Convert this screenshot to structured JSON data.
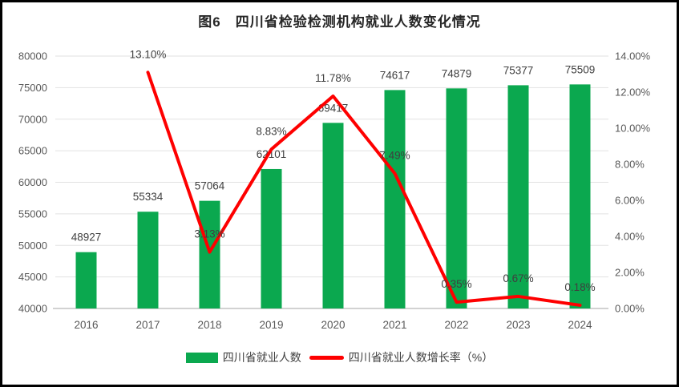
{
  "title": "图6　四川省检验检测机构就业人数变化情况",
  "chart_data": {
    "type": "bar",
    "subtype": "bar+line combo",
    "categories": [
      "2016",
      "2017",
      "2018",
      "2019",
      "2020",
      "2021",
      "2022",
      "2023",
      "2024"
    ],
    "series": [
      {
        "name": "四川省就业人数",
        "type": "bar",
        "axis": "left",
        "color": "#0ba84f",
        "values": [
          48927,
          55334,
          57064,
          62101,
          69417,
          74617,
          74879,
          75377,
          75509
        ],
        "labels": [
          "48927",
          "55334",
          "57064",
          "62101",
          "69417",
          "74617",
          "74879",
          "75377",
          "75509"
        ]
      },
      {
        "name": "四川省就业人数增长率（%）",
        "type": "line",
        "axis": "right",
        "color": "#fe0000",
        "values": [
          null,
          13.1,
          3.13,
          8.83,
          11.78,
          7.49,
          0.35,
          0.67,
          0.18
        ],
        "labels": [
          null,
          "13.10%",
          "3.13%",
          "8.83%",
          "11.78%",
          "7.49%",
          "0.35%",
          "0.67%",
          "0.18%"
        ]
      }
    ],
    "axes": {
      "left": {
        "min": 40000,
        "max": 80000,
        "step": 5000,
        "tick_labels": [
          "40000",
          "45000",
          "50000",
          "55000",
          "60000",
          "65000",
          "70000",
          "75000",
          "80000"
        ]
      },
      "right": {
        "min": 0,
        "max": 14,
        "step": 2,
        "tick_labels": [
          "0.00%",
          "2.00%",
          "4.00%",
          "6.00%",
          "8.00%",
          "10.00%",
          "12.00%",
          "14.00%"
        ]
      }
    },
    "grid": "horizontal",
    "legend_position": "bottom",
    "title": "图6　四川省检验检测机构就业人数变化情况",
    "xlabel": "",
    "ylabel": ""
  },
  "colors": {
    "bar": "#0ba84f",
    "line": "#fe0000",
    "gridline": "#e2e2e2",
    "axis_line": "#d2d2d2",
    "tick_text": "#595959",
    "data_label_text": "#3f3f3f",
    "title_text": "#262626",
    "border": "#000000",
    "background": "#ffffff"
  }
}
